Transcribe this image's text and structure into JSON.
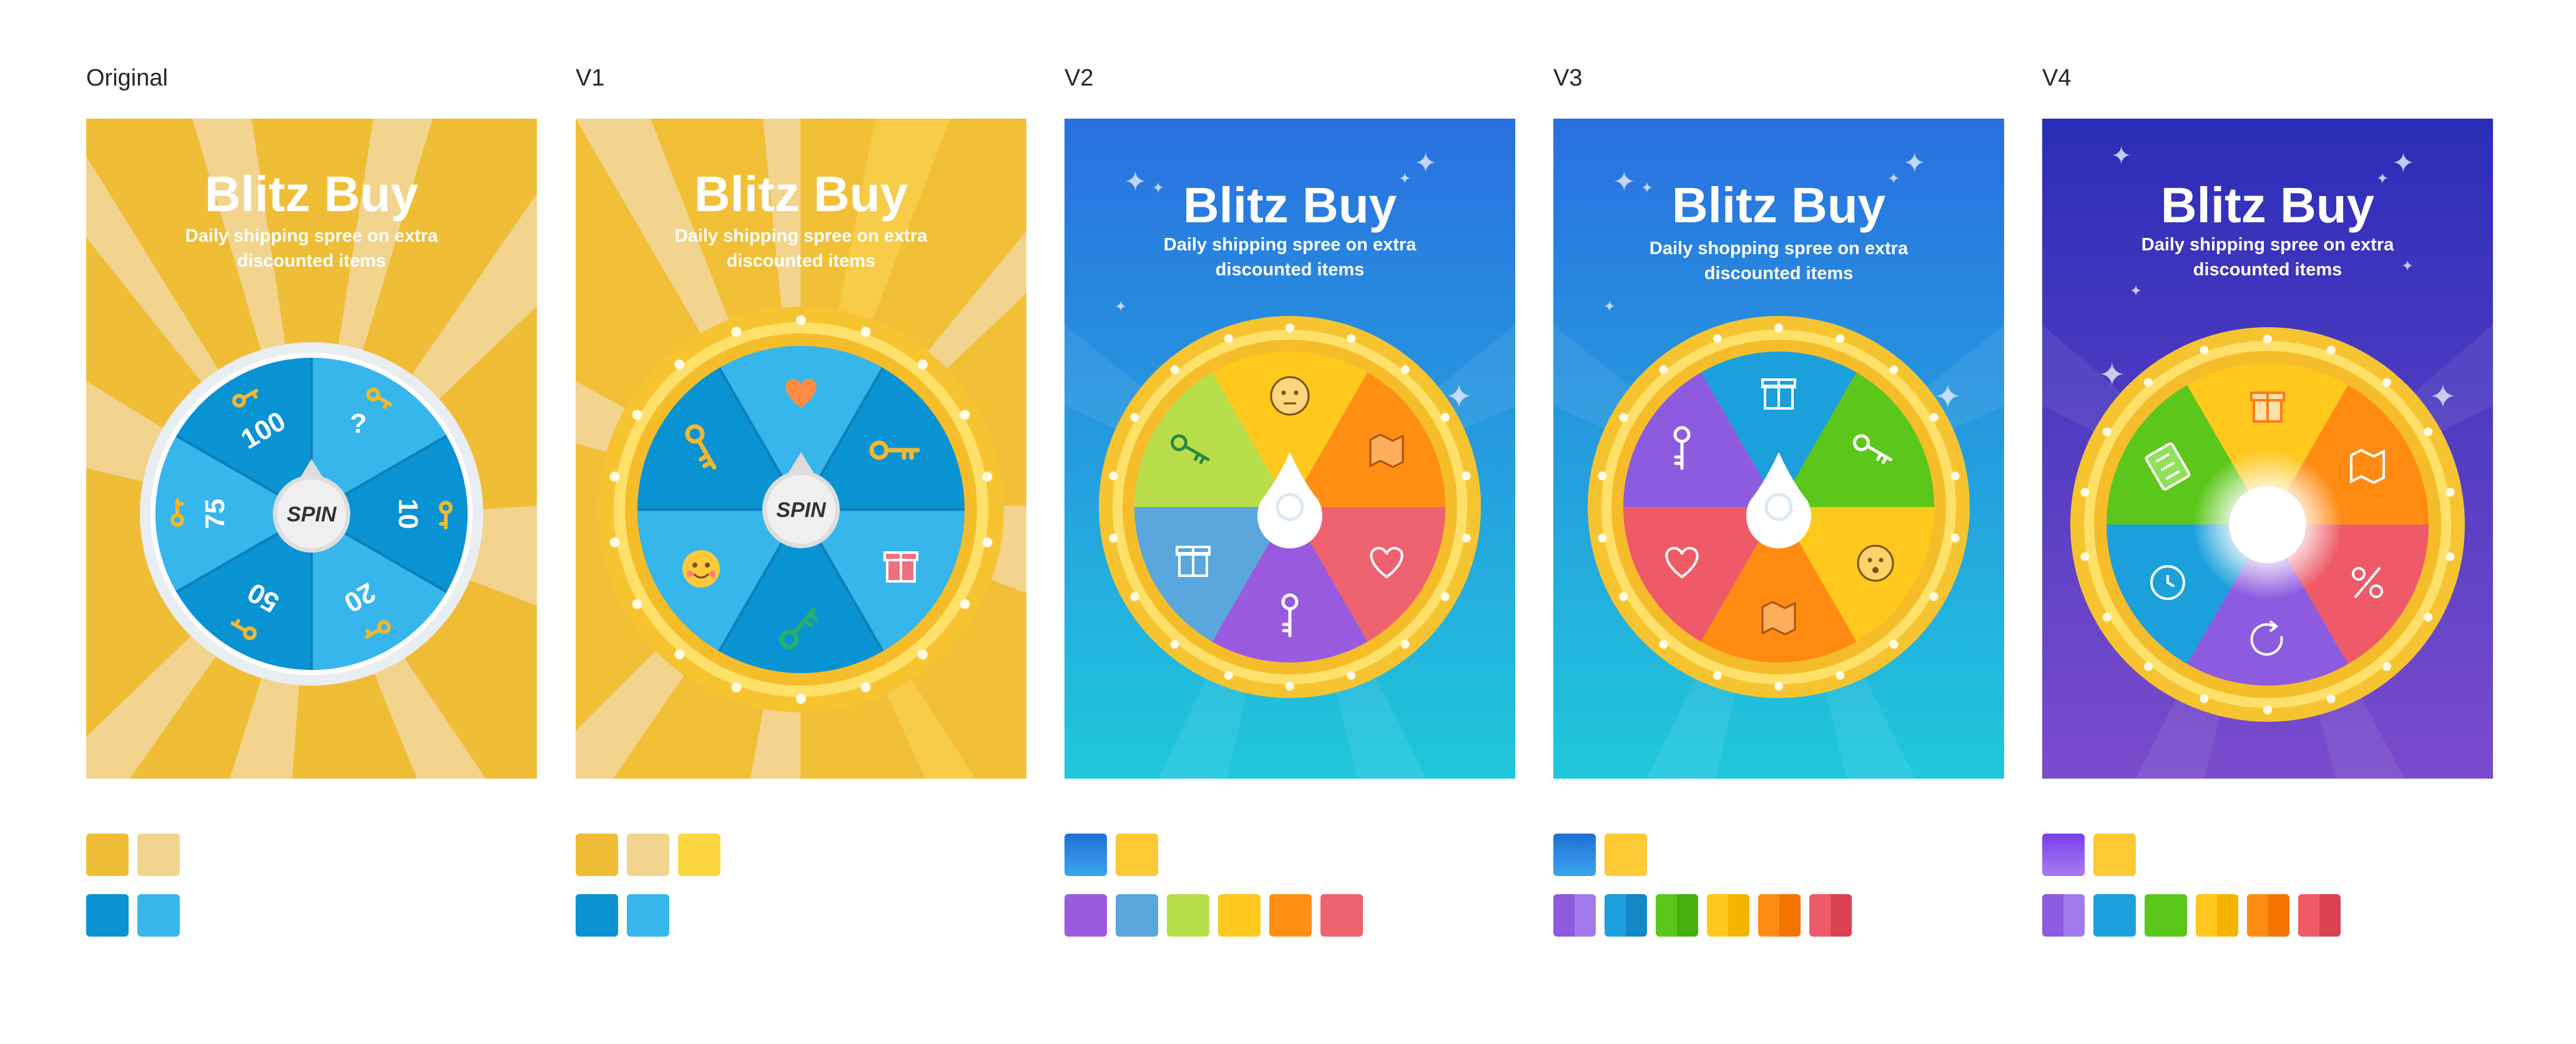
{
  "variants": [
    {
      "label": "Original",
      "title": "Blitz Buy",
      "subtitle": "Daily shipping spree on extra discounted items",
      "wheel": {
        "center_label": "SPIN",
        "segments": [
          {
            "icon": "key-icon",
            "text": "?"
          },
          {
            "icon": "key-icon",
            "text": "10"
          },
          {
            "icon": "key-icon",
            "text": "20"
          },
          {
            "icon": "key-icon",
            "text": "50"
          },
          {
            "icon": "key-icon",
            "text": "75"
          },
          {
            "icon": "key-icon",
            "text": "100"
          }
        ]
      },
      "swatches": [
        [
          "#f0bd37",
          "#f2d48e"
        ],
        [
          "#0a93d3",
          "#37b6ec"
        ]
      ]
    },
    {
      "label": "V1",
      "title": "Blitz Buy",
      "subtitle": "Daily shipping spree on extra discounted items",
      "wheel": {
        "center_label": "SPIN",
        "segments": [
          {
            "icon": "heart-icon"
          },
          {
            "icon": "key-icon"
          },
          {
            "icon": "gift-icon"
          },
          {
            "icon": "key-icon"
          },
          {
            "icon": "smiley-icon"
          },
          {
            "icon": "key-icon"
          }
        ]
      },
      "swatches": [
        [
          "#f0bd37",
          "#f2d48e",
          "#fbd640"
        ],
        [
          "#0a93d3",
          "#37b6ec"
        ]
      ]
    },
    {
      "label": "V2",
      "title": "Blitz Buy",
      "subtitle": "Daily shipping spree on extra discounted items",
      "wheel": {
        "center_label": "",
        "segments": [
          {
            "icon": "neutral-face-icon"
          },
          {
            "icon": "map-icon"
          },
          {
            "icon": "heart-icon"
          },
          {
            "icon": "key-icon"
          },
          {
            "icon": "gift-icon"
          },
          {
            "icon": "key-icon"
          }
        ]
      },
      "swatches": [
        [
          "#2a78e4",
          "#fdc934"
        ],
        [
          "#9a5ae0",
          "#59a7dc",
          "#b8de4c",
          "#ffc81d",
          "#ff8f12",
          "#ee6270"
        ]
      ]
    },
    {
      "label": "V3",
      "title": "Blitz Buy",
      "subtitle": "Daily shopping spree on extra discounted items",
      "wheel": {
        "center_label": "",
        "segments": [
          {
            "icon": "gift-icon"
          },
          {
            "icon": "key-icon"
          },
          {
            "icon": "smiley-icon"
          },
          {
            "icon": "map-icon"
          },
          {
            "icon": "heart-icon"
          },
          {
            "icon": "key-icon"
          }
        ]
      },
      "swatches": [
        [
          "#2a78e4",
          "#fdc934"
        ],
        [
          "#8d5be0",
          "#1ba0dc",
          "#5cc71b",
          "#ffc81d",
          "#ff8b12",
          "#ee5a68"
        ]
      ]
    },
    {
      "label": "V4",
      "title": "Blitz Buy",
      "subtitle": "Daily shipping spree on extra discounted items",
      "wheel": {
        "center_label": "",
        "segments": [
          {
            "icon": "gift-icon"
          },
          {
            "icon": "map-icon"
          },
          {
            "icon": "percent-icon"
          },
          {
            "icon": "refresh-icon"
          },
          {
            "icon": "clock-icon"
          },
          {
            "icon": "ticket-icon"
          }
        ]
      },
      "swatches": [
        [
          "#8d53ec",
          "#fdc934"
        ],
        [
          "#8d5be0",
          "#1ba0dc",
          "#5cc71b",
          "#ffc81d",
          "#ff8b12",
          "#ee5a68"
        ]
      ]
    }
  ]
}
